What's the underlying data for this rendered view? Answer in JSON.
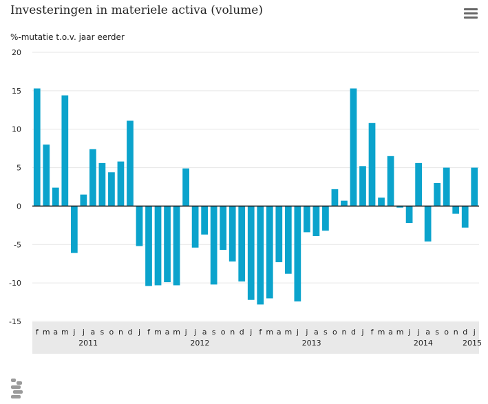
{
  "title": "Investeringen in materiele activa (volume)",
  "ylabel": "%-mutatie t.o.v. jaar eerder",
  "menu_icon": "hamburger-menu-icon",
  "logo_icon": "cbs-logo-icon",
  "colors": {
    "bar": "#0ba3cc",
    "grid": "#e6e6e6",
    "zero": "#222222",
    "xaxis_band": "#e9e9e9"
  },
  "chart_data": {
    "type": "bar",
    "title": "Investeringen in materiele activa (volume)",
    "ylabel": "%-mutatie t.o.v. jaar eerder",
    "ylim": [
      -15,
      20
    ],
    "yticks": [
      -15,
      -10,
      -5,
      0,
      5,
      10,
      15,
      20
    ],
    "grid": true,
    "categories": [
      "f",
      "m",
      "a",
      "m",
      "j",
      "j",
      "a",
      "s",
      "o",
      "n",
      "d",
      "j",
      "f",
      "m",
      "a",
      "m",
      "j",
      "j",
      "a",
      "s",
      "o",
      "n",
      "d",
      "j",
      "f",
      "m",
      "a",
      "m",
      "j",
      "j",
      "a",
      "s",
      "o",
      "n",
      "d",
      "j",
      "f",
      "m",
      "a",
      "m",
      "j",
      "j",
      "a",
      "s",
      "o",
      "n",
      "d",
      "j"
    ],
    "values": [
      15.3,
      8.0,
      2.4,
      14.4,
      -6.1,
      1.5,
      7.4,
      5.6,
      4.4,
      5.8,
      11.1,
      -5.2,
      -10.4,
      -10.3,
      -9.9,
      -10.3,
      4.9,
      -5.4,
      -3.7,
      -10.2,
      -5.7,
      -7.2,
      -9.8,
      -12.2,
      -12.8,
      -12.0,
      -7.3,
      -8.8,
      -12.4,
      -3.4,
      -3.9,
      -3.2,
      2.2,
      0.7,
      15.3,
      5.2,
      10.8,
      1.1,
      6.5,
      -0.2,
      -2.2,
      5.6,
      -4.6,
      3.0,
      5.0,
      -1.0,
      -2.8,
      5.0
    ],
    "years": [
      {
        "label": "2011",
        "index": 5.5
      },
      {
        "label": "2012",
        "index": 17.5
      },
      {
        "label": "2013",
        "index": 29.5
      },
      {
        "label": "2014",
        "index": 41.5
      },
      {
        "label": "2015",
        "index": 47
      }
    ]
  }
}
